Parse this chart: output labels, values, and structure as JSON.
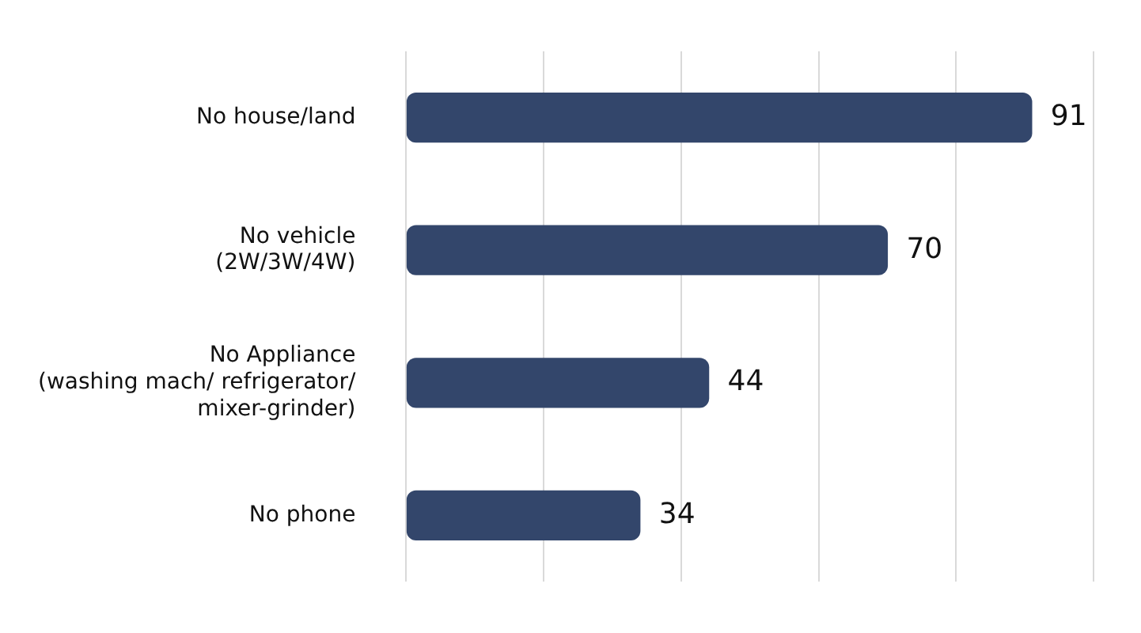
{
  "chart_data": {
    "type": "bar",
    "orientation": "horizontal",
    "categories": [
      "No house/land",
      "No vehicle\n(2W/3W/4W)",
      "No Appliance\n(washing mach/ refrigerator/\nmixer-grinder)",
      "No phone"
    ],
    "values": [
      91,
      70,
      44,
      34
    ],
    "color": "#33466b",
    "xlim": [
      0,
      100
    ],
    "xticks": [
      {
        "value": 0,
        "label": null
      },
      {
        "value": 20,
        "label": null
      },
      {
        "value": 40,
        "label": null
      },
      {
        "value": 60,
        "label": null
      },
      {
        "value": 80,
        "label": null
      },
      {
        "value": 100,
        "label": null
      }
    ],
    "grid": "x",
    "tick_labels": "y",
    "data_labels": true,
    "legend": false
  }
}
